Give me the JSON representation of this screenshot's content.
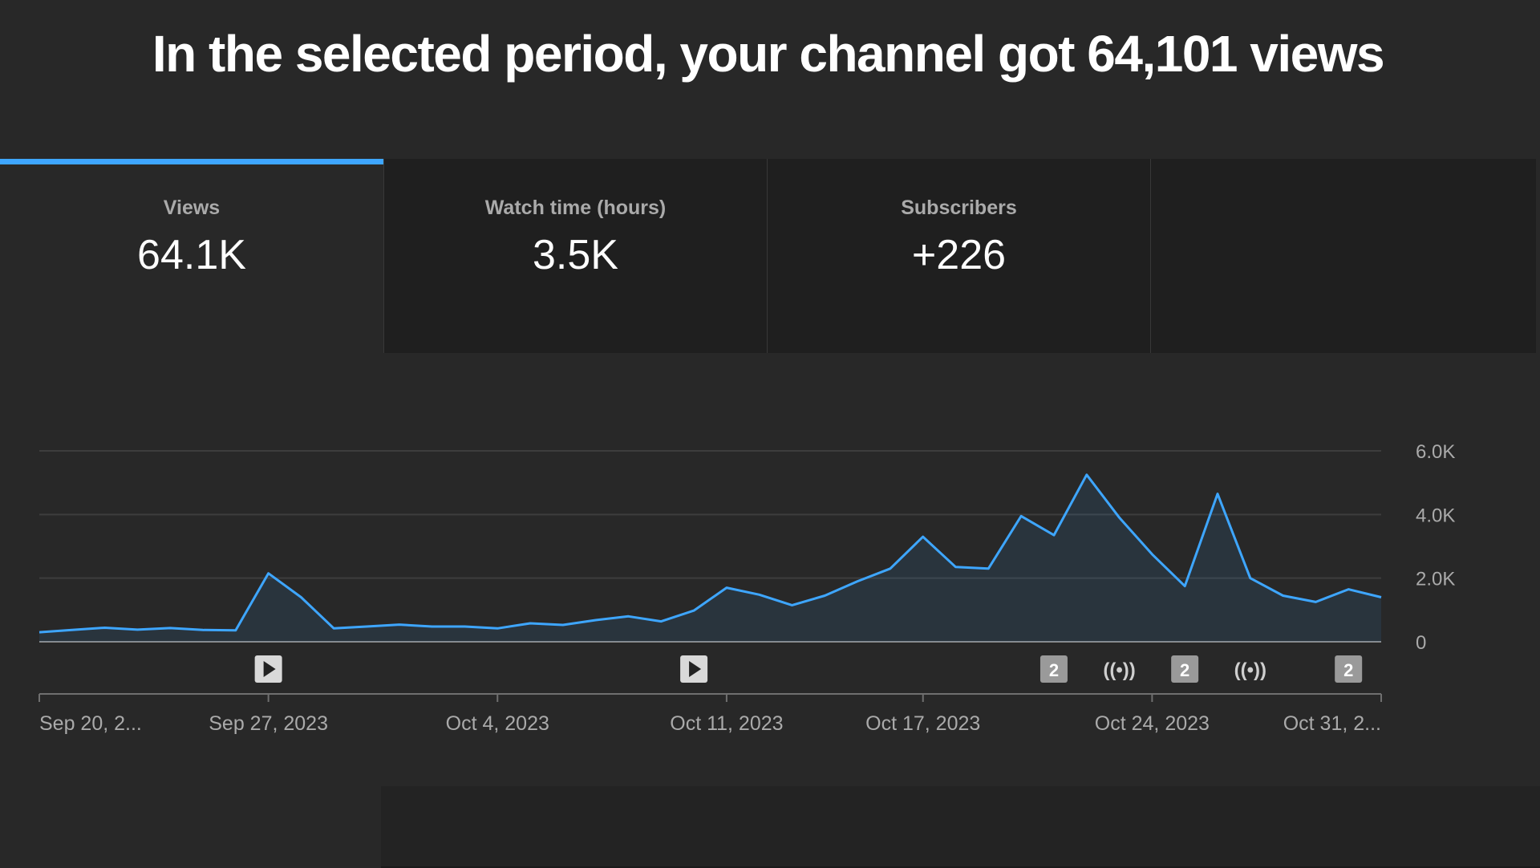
{
  "headline": "In the selected period, your channel got 64,101 views",
  "metrics": [
    {
      "label": "Views",
      "value": "64.1K",
      "active": true
    },
    {
      "label": "Watch time (hours)",
      "value": "3.5K",
      "active": false
    },
    {
      "label": "Subscribers",
      "value": "+226",
      "active": false
    }
  ],
  "colors": {
    "line": "#3ea6ff",
    "accent": "#3ea6ff",
    "background": "#282828"
  },
  "chart_data": {
    "type": "area",
    "series": [
      {
        "values": [
          300,
          370,
          440,
          380,
          430,
          370,
          360,
          2150,
          1400,
          420,
          480,
          540,
          480,
          480,
          420,
          580,
          530,
          680,
          800,
          640,
          980,
          1700,
          1480,
          1150,
          1450,
          1900,
          2300,
          3300,
          2350,
          2300,
          3950,
          3350,
          5250,
          3900,
          2750,
          1750,
          4650,
          2000,
          1450,
          1250,
          1650,
          1400
        ]
      }
    ],
    "x_start": "Sep 20, 2023",
    "x_ticks": [
      {
        "label": "Sep 20, 2...",
        "index": 0
      },
      {
        "label": "Sep 27, 2023",
        "index": 7
      },
      {
        "label": "Oct 4, 2023",
        "index": 14
      },
      {
        "label": "Oct 11, 2023",
        "index": 21
      },
      {
        "label": "Oct 17, 2023",
        "index": 27
      },
      {
        "label": "Oct 24, 2023",
        "index": 34
      },
      {
        "label": "Oct 31, 2...",
        "index": 41
      }
    ],
    "y_ticks": [
      {
        "label": "0",
        "value": 0
      },
      {
        "label": "2.0K",
        "value": 2000
      },
      {
        "label": "4.0K",
        "value": 4000
      },
      {
        "label": "6.0K",
        "value": 6000
      }
    ],
    "ylim": [
      0,
      6000
    ],
    "grid": true,
    "markers": [
      {
        "type": "video",
        "icon": "play-icon",
        "index": 7
      },
      {
        "type": "video",
        "icon": "play-icon",
        "index": 20
      },
      {
        "type": "count",
        "label": "2",
        "index": 31
      },
      {
        "type": "live",
        "icon": "live-icon",
        "label": "((•))",
        "index": 33
      },
      {
        "type": "count",
        "label": "2",
        "index": 35
      },
      {
        "type": "live",
        "icon": "live-icon",
        "label": "((•))",
        "index": 37
      },
      {
        "type": "count",
        "label": "2",
        "index": 40
      }
    ]
  }
}
